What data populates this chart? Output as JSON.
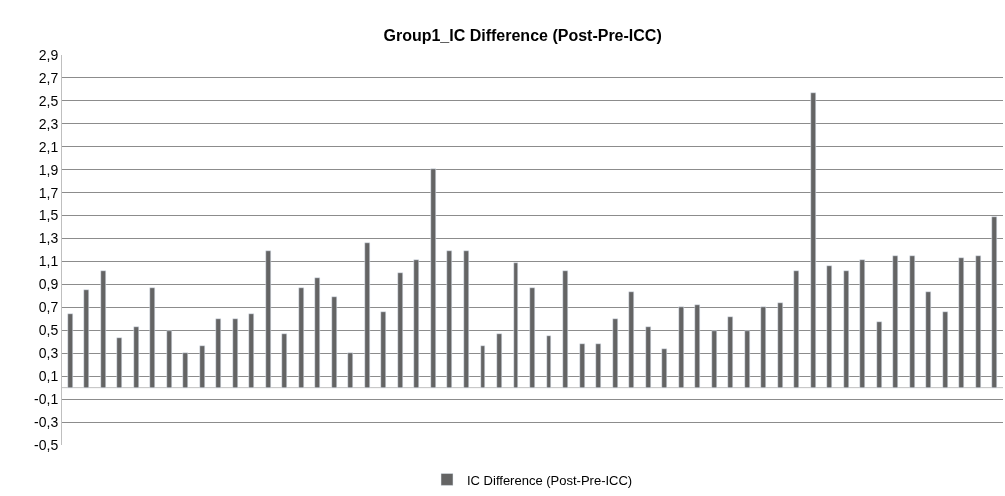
{
  "chart_data": {
    "type": "bar",
    "title": "Group1_IC Difference (Post-Pre-ICC)",
    "categories": [
      null,
      null,
      null,
      null,
      null,
      null,
      null,
      null,
      null,
      null,
      null,
      null,
      null,
      null,
      null,
      null,
      null,
      null,
      null,
      null,
      null,
      null,
      null,
      null,
      null,
      null,
      null,
      null,
      null,
      null,
      null,
      null,
      null,
      null,
      null,
      null,
      null,
      null,
      null,
      null,
      null,
      null,
      null,
      null,
      null,
      null,
      null,
      null,
      null,
      null,
      null,
      null,
      null,
      null,
      null,
      null,
      null
    ],
    "series": [
      {
        "name": "IC Difference (Post-Pre-ICC)",
        "color": "#646464",
        "values": [
          0.64,
          0.85,
          1.02,
          0.43,
          0.53,
          0.87,
          0.49,
          0.3,
          0.36,
          0.6,
          0.6,
          0.64,
          1.19,
          0.47,
          0.87,
          0.96,
          0.79,
          0.3,
          1.26,
          0.66,
          1.0,
          1.11,
          1.91,
          1.19,
          1.19,
          0.36,
          0.47,
          1.09,
          0.87,
          0.45,
          1.02,
          0.38,
          0.38,
          0.6,
          0.83,
          0.53,
          0.34,
          0.7,
          0.72,
          0.49,
          0.62,
          0.49,
          0.7,
          0.74,
          1.02,
          2.57,
          1.06,
          1.02,
          1.11,
          0.57,
          1.15,
          1.15,
          0.83,
          0.66,
          1.13,
          1.15,
          1.49
        ]
      }
    ],
    "ylim": [
      -0.5,
      2.9
    ],
    "yticks": [
      {
        "value": -0.5,
        "label": "-0,5"
      },
      {
        "value": -0.3,
        "label": "-0,3"
      },
      {
        "value": -0.1,
        "label": "-0,1"
      },
      {
        "value": 0.1,
        "label": "0,1"
      },
      {
        "value": 0.3,
        "label": "0,3"
      },
      {
        "value": 0.5,
        "label": "0,5"
      },
      {
        "value": 0.7,
        "label": "0,7"
      },
      {
        "value": 0.9,
        "label": "0,9"
      },
      {
        "value": 1.1,
        "label": "1,1"
      },
      {
        "value": 1.3,
        "label": "1,3"
      },
      {
        "value": 1.5,
        "label": "1,5"
      },
      {
        "value": 1.7,
        "label": "1,7"
      },
      {
        "value": 1.9,
        "label": "1,9"
      },
      {
        "value": 2.1,
        "label": "2,1"
      },
      {
        "value": 2.3,
        "label": "2,3"
      },
      {
        "value": 2.5,
        "label": "2,5"
      },
      {
        "value": 2.7,
        "label": "2,7"
      },
      {
        "value": 2.9,
        "label": "2,9"
      }
    ],
    "grid": "y",
    "legend": "bottom"
  }
}
